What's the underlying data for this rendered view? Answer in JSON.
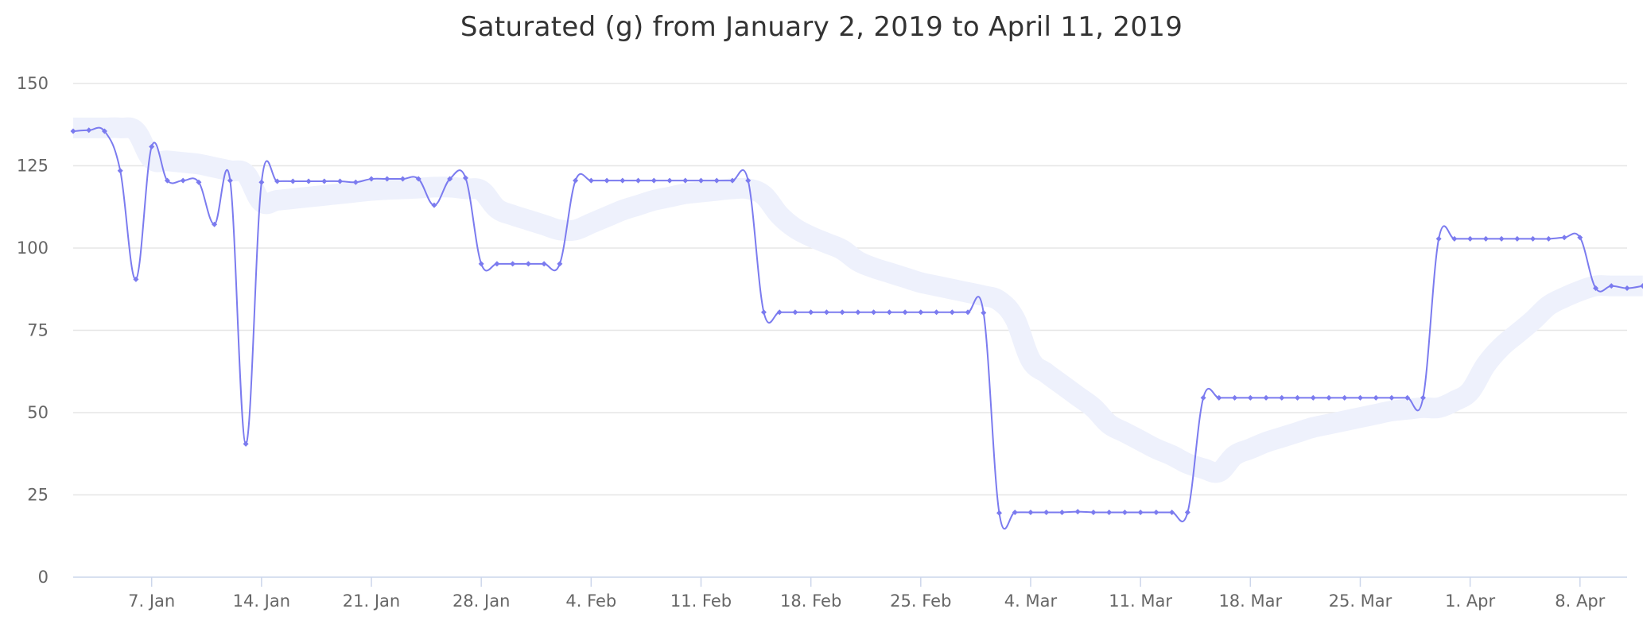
{
  "chart_data": {
    "type": "line",
    "title": "Saturated (g) from January 2, 2019 to April 11, 2019",
    "xlabel": "",
    "ylabel": "",
    "ylim": [
      0,
      150
    ],
    "xlim": [
      "2019-01-02",
      "2019-04-11"
    ],
    "grid": true,
    "legend": "none",
    "yticks": [
      0,
      25,
      50,
      75,
      100,
      125,
      150
    ],
    "xticks": [
      {
        "date": "2019-01-07",
        "label": "7. Jan"
      },
      {
        "date": "2019-01-14",
        "label": "14. Jan"
      },
      {
        "date": "2019-01-21",
        "label": "21. Jan"
      },
      {
        "date": "2019-01-28",
        "label": "28. Jan"
      },
      {
        "date": "2019-02-04",
        "label": "4. Feb"
      },
      {
        "date": "2019-02-11",
        "label": "11. Feb"
      },
      {
        "date": "2019-02-18",
        "label": "18. Feb"
      },
      {
        "date": "2019-02-25",
        "label": "25. Feb"
      },
      {
        "date": "2019-03-04",
        "label": "4. Mar"
      },
      {
        "date": "2019-03-11",
        "label": "11. Mar"
      },
      {
        "date": "2019-03-18",
        "label": "18. Mar"
      },
      {
        "date": "2019-03-25",
        "label": "25. Mar"
      },
      {
        "date": "2019-04-01",
        "label": "1. Apr"
      },
      {
        "date": "2019-04-08",
        "label": "8. Apr"
      }
    ],
    "series": [
      {
        "color": "#7b7bef",
        "start": "2019-01-02",
        "values": [
          135.5,
          135.8,
          135.5,
          123.5,
          90.5,
          130.8,
          120.5,
          120.5,
          120.0,
          107.2,
          120.5,
          40.5,
          120.0,
          120.3,
          120.3,
          120.3,
          120.3,
          120.3,
          120.0,
          121.0,
          121.0,
          121.0,
          121.0,
          113.0,
          121.0,
          121.3,
          95.2,
          95.2,
          95.2,
          95.2,
          95.2,
          95.2,
          120.5,
          120.5,
          120.5,
          120.5,
          120.5,
          120.5,
          120.5,
          120.5,
          120.5,
          120.5,
          120.5,
          120.5,
          80.5,
          80.5,
          80.5,
          80.5,
          80.5,
          80.5,
          80.5,
          80.5,
          80.5,
          80.5,
          80.5,
          80.5,
          80.5,
          80.5,
          80.3,
          19.5,
          19.7,
          19.7,
          19.7,
          19.7,
          19.9,
          19.7,
          19.7,
          19.7,
          19.7,
          19.7,
          19.7,
          19.7,
          54.5,
          54.5,
          54.5,
          54.5,
          54.5,
          54.5,
          54.5,
          54.5,
          54.5,
          54.5,
          54.5,
          54.5,
          54.5,
          54.5,
          54.5,
          102.8,
          102.8,
          102.8,
          102.8,
          102.8,
          102.8,
          102.8,
          102.8,
          103.2,
          103.2,
          87.8,
          88.5,
          87.8,
          88.5
        ]
      },
      {
        "color": "#eef1fc",
        "start": "2019-01-02",
        "values": [
          136.5,
          136.5,
          136.5,
          136.5,
          135.5,
          127.0,
          126.5,
          126.0,
          125.5,
          124.5,
          123.5,
          122.5,
          114.0,
          114.5,
          115.0,
          115.5,
          116.0,
          116.5,
          117.0,
          117.5,
          117.8,
          118.0,
          118.2,
          118.5,
          118.5,
          118.0,
          117.5,
          112.0,
          110.0,
          108.5,
          107.0,
          105.5,
          105.5,
          107.5,
          109.5,
          111.5,
          113.0,
          114.5,
          115.5,
          116.5,
          117.0,
          117.5,
          118.0,
          118.0,
          116.0,
          110.0,
          106.0,
          103.5,
          101.5,
          99.5,
          96.0,
          94.0,
          92.5,
          91.0,
          89.5,
          88.5,
          87.5,
          86.5,
          85.5,
          84.0,
          78.5,
          66.0,
          62.0,
          58.5,
          55.0,
          51.5,
          46.5,
          44.0,
          41.5,
          39.0,
          37.0,
          34.5,
          33.0,
          32.0,
          37.0,
          39.0,
          41.0,
          42.5,
          44.0,
          45.5,
          46.5,
          47.5,
          48.5,
          49.5,
          50.5,
          51.0,
          51.5,
          51.5,
          53.5,
          56.5,
          64.5,
          70.0,
          74.0,
          78.0,
          82.5,
          85.0,
          87.0,
          88.5,
          88.5,
          88.5,
          88.5
        ]
      }
    ]
  }
}
